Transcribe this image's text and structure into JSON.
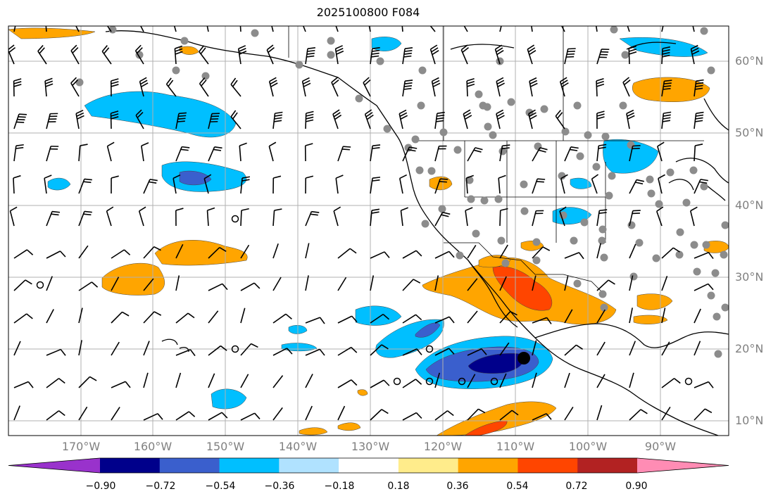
{
  "title": "2025100800 F084",
  "lat_labels": [
    "60°N",
    "50°N",
    "40°N",
    "30°N",
    "20°N",
    "10°N"
  ],
  "lon_labels": [
    "170°W",
    "160°W",
    "150°W",
    "140°W",
    "130°W",
    "120°W",
    "110°W",
    "100°W",
    "90°W"
  ],
  "colorbar": {
    "tick_labels": [
      "−0.90",
      "−0.72",
      "−0.54",
      "−0.36",
      "−0.18",
      "0.18",
      "0.36",
      "0.54",
      "0.72",
      "0.90"
    ],
    "colors": [
      "#9932cc",
      "#00008b",
      "#3a5fcd",
      "#00bfff",
      "#b0e2ff",
      "#ffffff",
      "#ffec8b",
      "#ffa500",
      "#ff4500",
      "#b22222",
      "#ff8cb4"
    ]
  },
  "colors": {
    "grid": "#b0b0b0",
    "coast": "#000000",
    "station_dot": "#8c8c8c",
    "barb": "#000000"
  }
}
